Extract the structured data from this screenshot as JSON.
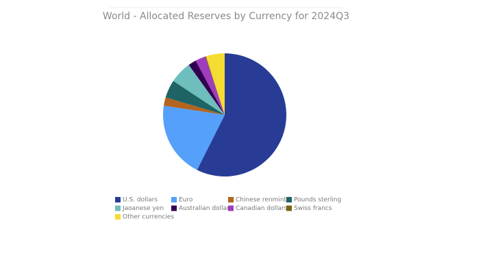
{
  "chart_data": {
    "type": "pie",
    "title": "World - Allocated Reserves by Currency for 2024Q3",
    "categories": [
      "U.S. dollars",
      "Euro",
      "Chinese renminbi",
      "Pounds sterling",
      "Jaoanese yen",
      "Australian dollars",
      "Canadian dollars",
      "Swiss francs",
      "Other currencies"
    ],
    "values": [
      57.4,
      20.0,
      2.2,
      4.7,
      5.8,
      2.1,
      2.7,
      0.2,
      4.9
    ],
    "colors": [
      "#283c96",
      "#55a0fa",
      "#b4641e",
      "#1e6464",
      "#6ebebe",
      "#320050",
      "#a03cbe",
      "#786414",
      "#f5dc32"
    ]
  }
}
